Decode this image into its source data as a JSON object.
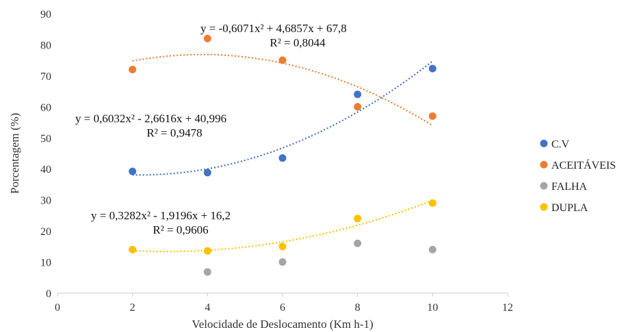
{
  "chart_data": {
    "type": "scatter",
    "title": "",
    "xlabel": "Velocidade de Deslocamento (Km h-1)",
    "ylabel": "Porcentagem (%)",
    "xlim": [
      0,
      12
    ],
    "ylim": [
      0,
      90
    ],
    "xticks": [
      0,
      2,
      4,
      6,
      8,
      10,
      12
    ],
    "yticks": [
      0,
      10,
      20,
      30,
      40,
      50,
      60,
      70,
      80,
      90
    ],
    "grid": false,
    "legend_position": "right",
    "x": [
      2,
      4,
      6,
      8,
      10
    ],
    "series": [
      {
        "name": "C.V",
        "color": "#4472C4",
        "values": [
          39.2,
          38.8,
          43.5,
          64.0,
          72.3
        ],
        "trendline": {
          "type": "polynomial",
          "order": 2,
          "coefficients": [
            0.6032,
            -2.6616,
            40.996
          ],
          "equation": "y = 0,6032x² - 2,6616x + 40,996",
          "r2_label": "R² = 0,9478"
        }
      },
      {
        "name": "ACEITÁVEIS",
        "color": "#ED7D31",
        "values": [
          72.0,
          82.0,
          75.0,
          60.0,
          57.0
        ],
        "trendline": {
          "type": "polynomial",
          "order": 2,
          "coefficients": [
            -0.6071,
            4.6857,
            67.8
          ],
          "equation": "y = -0,6071x² + 4,6857x + 67,8",
          "r2_label": "R² = 0,8044"
        }
      },
      {
        "name": "FALHA",
        "color": "#A5A5A5",
        "x": [
          4,
          6,
          8,
          10
        ],
        "values": [
          6.8,
          10.0,
          16.0,
          14.0
        ]
      },
      {
        "name": "DUPLA",
        "color": "#FFC000",
        "values": [
          14.0,
          13.6,
          15.0,
          24.0,
          29.0
        ],
        "trendline": {
          "type": "polynomial",
          "order": 2,
          "coefficients": [
            0.3282,
            -1.9196,
            16.2
          ],
          "equation": "y = 0,3282x² - 1,9196x + 16,2",
          "r2_label": "R² = 0,9606"
        }
      }
    ]
  }
}
